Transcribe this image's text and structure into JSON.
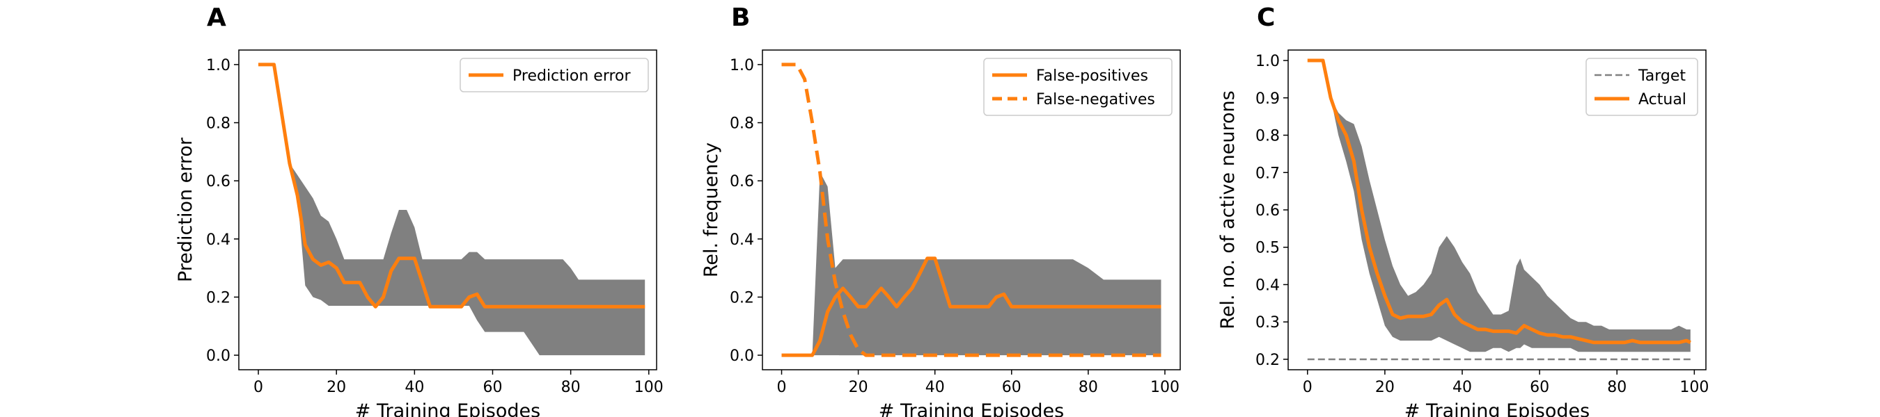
{
  "colors": {
    "actual": "#ff7f0e",
    "band": "#808080",
    "target": "#808080"
  },
  "chart_data": [
    {
      "type": "line",
      "panel_label": "A",
      "xlabel": "# Training Episodes",
      "ylabel": "Prediction error",
      "xlim": [
        -5,
        102
      ],
      "ylim": [
        -0.05,
        1.05
      ],
      "xticks": [
        0,
        20,
        40,
        60,
        80,
        100
      ],
      "yticks": [
        0.0,
        0.2,
        0.4,
        0.6,
        0.8,
        1.0
      ],
      "ytick_labels": [
        "0.0",
        "0.2",
        "0.4",
        "0.6",
        "0.8",
        "1.0"
      ],
      "legend_position": "upper-right",
      "bands": [
        {
          "x": [
            0,
            4,
            8,
            10,
            12,
            14,
            16,
            18,
            20,
            22,
            24,
            26,
            28,
            30,
            32,
            34,
            36,
            38,
            40,
            42,
            44,
            46,
            48,
            50,
            52,
            54,
            56,
            58,
            60,
            62,
            64,
            66,
            68,
            70,
            72,
            74,
            76,
            78,
            80,
            82,
            84,
            86,
            88,
            90,
            92,
            94,
            96,
            98,
            99
          ],
          "upper": [
            1.0,
            1.0,
            0.66,
            0.62,
            0.58,
            0.54,
            0.48,
            0.46,
            0.4,
            0.33,
            0.33,
            0.33,
            0.33,
            0.33,
            0.33,
            0.42,
            0.5,
            0.5,
            0.44,
            0.33,
            0.33,
            0.33,
            0.33,
            0.33,
            0.33,
            0.355,
            0.355,
            0.33,
            0.33,
            0.33,
            0.33,
            0.33,
            0.33,
            0.33,
            0.33,
            0.33,
            0.33,
            0.33,
            0.3,
            0.26,
            0.26,
            0.26,
            0.26,
            0.26,
            0.26,
            0.26,
            0.26,
            0.26,
            0.26
          ],
          "lower": [
            1.0,
            1.0,
            0.66,
            0.55,
            0.24,
            0.2,
            0.19,
            0.17,
            0.17,
            0.17,
            0.17,
            0.17,
            0.17,
            0.17,
            0.17,
            0.17,
            0.17,
            0.17,
            0.17,
            0.17,
            0.17,
            0.17,
            0.17,
            0.17,
            0.17,
            0.17,
            0.12,
            0.08,
            0.08,
            0.08,
            0.08,
            0.08,
            0.08,
            0.04,
            0.0,
            0.0,
            0.0,
            0.0,
            0.0,
            0.0,
            0.0,
            0.0,
            0.0,
            0.0,
            0.0,
            0.0,
            0.0,
            0.0,
            0.0
          ]
        }
      ],
      "series": [
        {
          "name": "Prediction error",
          "style": "solid",
          "x": [
            0,
            4,
            8,
            10,
            12,
            14,
            16,
            18,
            20,
            22,
            24,
            26,
            28,
            30,
            32,
            34,
            36,
            38,
            40,
            42,
            44,
            46,
            48,
            50,
            52,
            54,
            56,
            58,
            60,
            62,
            64,
            66,
            68,
            70,
            72,
            74,
            76,
            78,
            80,
            82,
            84,
            86,
            88,
            90,
            92,
            94,
            96,
            98,
            99
          ],
          "y": [
            1.0,
            1.0,
            0.66,
            0.55,
            0.38,
            0.33,
            0.31,
            0.32,
            0.3,
            0.25,
            0.25,
            0.25,
            0.2,
            0.167,
            0.2,
            0.29,
            0.333,
            0.333,
            0.333,
            0.25,
            0.167,
            0.167,
            0.167,
            0.167,
            0.167,
            0.2,
            0.21,
            0.167,
            0.167,
            0.167,
            0.167,
            0.167,
            0.167,
            0.167,
            0.167,
            0.167,
            0.167,
            0.167,
            0.167,
            0.167,
            0.167,
            0.167,
            0.167,
            0.167,
            0.167,
            0.167,
            0.167,
            0.167,
            0.167
          ]
        }
      ]
    },
    {
      "type": "line",
      "panel_label": "B",
      "xlabel": "# Training Episodes",
      "ylabel": "Rel. frequency",
      "xlim": [
        -5,
        104
      ],
      "ylim": [
        -0.05,
        1.05
      ],
      "xticks": [
        0,
        20,
        40,
        60,
        80,
        100
      ],
      "yticks": [
        0.0,
        0.2,
        0.4,
        0.6,
        0.8,
        1.0
      ],
      "ytick_labels": [
        "0.0",
        "0.2",
        "0.4",
        "0.6",
        "0.8",
        "1.0"
      ],
      "legend_position": "upper-right",
      "bands": [
        {
          "x": [
            0,
            8,
            10,
            12,
            14,
            16,
            18,
            20,
            24,
            28,
            32,
            34,
            36,
            38,
            40,
            42,
            44,
            48,
            52,
            56,
            60,
            64,
            68,
            72,
            76,
            80,
            84,
            88,
            92,
            96,
            99
          ],
          "upper": [
            0,
            0,
            0.63,
            0.58,
            0.3,
            0.33,
            0.33,
            0.33,
            0.33,
            0.33,
            0.33,
            0.33,
            0.33,
            0.33,
            0.33,
            0.33,
            0.33,
            0.33,
            0.33,
            0.33,
            0.33,
            0.33,
            0.33,
            0.33,
            0.33,
            0.3,
            0.26,
            0.26,
            0.26,
            0.26,
            0.26
          ],
          "lower": [
            0,
            0,
            0,
            0,
            0,
            0,
            0,
            0,
            0,
            0,
            0,
            0,
            0,
            0,
            0,
            0,
            0,
            0,
            0,
            0,
            0,
            0,
            0,
            0,
            0,
            0,
            0,
            0,
            0,
            0,
            0
          ]
        },
        {
          "x": [
            15,
            17,
            19,
            21,
            23,
            25,
            27,
            29,
            31,
            32.5,
            34,
            36,
            38,
            40,
            41.5,
            43,
            45,
            47,
            49,
            51,
            53
          ],
          "upper": [
            0.17,
            0.13,
            0.1,
            0.07,
            0.04,
            0.02,
            0.0,
            0.0,
            0.0,
            0.0,
            0.0,
            0.0,
            0.0,
            0.0,
            0.0,
            0.0,
            0.0,
            0.0,
            0.0,
            0.0,
            0.0
          ],
          "lower": [
            0.0,
            0.0,
            0.0,
            0.0,
            0.0,
            0.0,
            0.0,
            0.0,
            0.0,
            0.0,
            0.0,
            0.0,
            0.0,
            0.0,
            0.0,
            0.0,
            0.0,
            0.0,
            0.0,
            0.0,
            0.0
          ]
        }
      ],
      "series": [
        {
          "name": "False-positives",
          "style": "solid",
          "x": [
            0,
            8,
            10,
            12,
            14,
            16,
            18,
            20,
            22,
            24,
            26,
            28,
            30,
            32,
            34,
            36,
            38,
            40,
            42,
            44,
            46,
            48,
            50,
            52,
            54,
            56,
            58,
            60,
            62,
            64,
            66,
            68,
            70,
            72,
            74,
            76,
            78,
            80,
            82,
            84,
            86,
            88,
            90,
            92,
            94,
            96,
            98,
            99
          ],
          "y": [
            0,
            0,
            0.05,
            0.15,
            0.2,
            0.23,
            0.2,
            0.167,
            0.167,
            0.2,
            0.23,
            0.2,
            0.167,
            0.2,
            0.23,
            0.28,
            0.333,
            0.333,
            0.25,
            0.167,
            0.167,
            0.167,
            0.167,
            0.167,
            0.167,
            0.2,
            0.21,
            0.167,
            0.167,
            0.167,
            0.167,
            0.167,
            0.167,
            0.167,
            0.167,
            0.167,
            0.167,
            0.167,
            0.167,
            0.167,
            0.167,
            0.167,
            0.167,
            0.167,
            0.167,
            0.167,
            0.167,
            0.167
          ]
        },
        {
          "name": "False-negatives",
          "style": "dashed",
          "x": [
            0,
            4,
            6,
            8,
            10,
            12,
            14,
            16,
            18,
            20,
            22,
            24,
            26,
            28,
            30,
            40,
            50,
            60,
            70,
            80,
            90,
            99
          ],
          "y": [
            1.0,
            1.0,
            0.95,
            0.8,
            0.63,
            0.4,
            0.25,
            0.15,
            0.07,
            0.02,
            0.0,
            0.0,
            0.0,
            0.0,
            0.0,
            0.0,
            0.0,
            0.0,
            0.0,
            0.0,
            0.0,
            0.0
          ]
        }
      ]
    },
    {
      "type": "line",
      "panel_label": "C",
      "xlabel": "# Training Episodes",
      "ylabel": "Rel. no. of active neurons",
      "xlim": [
        -5,
        103
      ],
      "ylim": [
        0.172,
        1.028
      ],
      "xticks": [
        0,
        20,
        40,
        60,
        80,
        100
      ],
      "yticks": [
        0.2,
        0.3,
        0.4,
        0.5,
        0.6,
        0.7,
        0.8,
        0.9,
        1.0
      ],
      "ytick_labels": [
        "0.2",
        "0.3",
        "0.4",
        "0.5",
        "0.6",
        "0.7",
        "0.8",
        "0.9",
        "1.0"
      ],
      "legend_position": "upper-right",
      "bands": [
        {
          "x": [
            0,
            4,
            6,
            8,
            10,
            12,
            14,
            16,
            18,
            20,
            22,
            24,
            26,
            28,
            30,
            32,
            34,
            36,
            38,
            40,
            42,
            44,
            46,
            48,
            50,
            52,
            54,
            55,
            56,
            58,
            60,
            62,
            64,
            66,
            68,
            70,
            72,
            74,
            76,
            78,
            80,
            82,
            84,
            86,
            88,
            90,
            92,
            94,
            96,
            98,
            99
          ],
          "upper": [
            1.0,
            1.0,
            0.9,
            0.86,
            0.84,
            0.83,
            0.77,
            0.68,
            0.6,
            0.52,
            0.45,
            0.4,
            0.37,
            0.38,
            0.4,
            0.43,
            0.5,
            0.53,
            0.5,
            0.46,
            0.43,
            0.38,
            0.35,
            0.32,
            0.32,
            0.33,
            0.45,
            0.47,
            0.44,
            0.42,
            0.4,
            0.37,
            0.35,
            0.33,
            0.31,
            0.3,
            0.3,
            0.29,
            0.29,
            0.28,
            0.28,
            0.28,
            0.28,
            0.28,
            0.28,
            0.28,
            0.28,
            0.28,
            0.29,
            0.28,
            0.28
          ],
          "lower": [
            1.0,
            1.0,
            0.9,
            0.8,
            0.73,
            0.65,
            0.52,
            0.43,
            0.36,
            0.29,
            0.26,
            0.25,
            0.25,
            0.25,
            0.25,
            0.25,
            0.26,
            0.25,
            0.24,
            0.23,
            0.22,
            0.22,
            0.22,
            0.23,
            0.23,
            0.22,
            0.23,
            0.23,
            0.24,
            0.23,
            0.23,
            0.23,
            0.23,
            0.23,
            0.23,
            0.22,
            0.22,
            0.22,
            0.22,
            0.22,
            0.22,
            0.22,
            0.22,
            0.22,
            0.22,
            0.22,
            0.22,
            0.22,
            0.22,
            0.22,
            0.22
          ]
        }
      ],
      "series": [
        {
          "name": "Target",
          "style": "dashed-thin",
          "x": [
            0,
            99
          ],
          "y": [
            0.2,
            0.2
          ]
        },
        {
          "name": "Actual",
          "style": "solid",
          "x": [
            0,
            4,
            6,
            8,
            10,
            12,
            14,
            16,
            18,
            20,
            22,
            24,
            26,
            28,
            30,
            32,
            34,
            36,
            38,
            40,
            42,
            44,
            46,
            48,
            50,
            52,
            54,
            56,
            58,
            60,
            62,
            64,
            66,
            68,
            70,
            72,
            74,
            76,
            78,
            80,
            82,
            84,
            86,
            88,
            90,
            92,
            94,
            96,
            98,
            99
          ],
          "y": [
            1.0,
            1.0,
            0.9,
            0.84,
            0.8,
            0.73,
            0.6,
            0.5,
            0.43,
            0.37,
            0.32,
            0.31,
            0.315,
            0.315,
            0.315,
            0.32,
            0.345,
            0.36,
            0.32,
            0.3,
            0.29,
            0.28,
            0.28,
            0.275,
            0.275,
            0.275,
            0.27,
            0.29,
            0.28,
            0.27,
            0.265,
            0.265,
            0.26,
            0.26,
            0.255,
            0.25,
            0.245,
            0.245,
            0.245,
            0.245,
            0.245,
            0.25,
            0.245,
            0.245,
            0.245,
            0.245,
            0.245,
            0.245,
            0.25,
            0.245
          ]
        }
      ]
    }
  ]
}
